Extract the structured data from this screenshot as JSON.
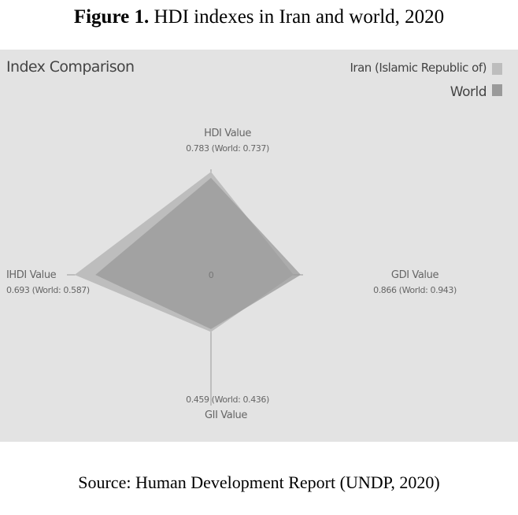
{
  "figure": {
    "title_bold": "Figure 1.",
    "title_rest": " HDI indexes in Iran and world, 2020",
    "source": "Source: Human Development Report (UNDP, 2020)"
  },
  "chart_data": {
    "type": "radar",
    "title": "Index Comparison",
    "center_label": "0",
    "axes": [
      "HDI Value",
      "GDI Value",
      "GII Value",
      "IHDI Value"
    ],
    "value_labels": [
      "0.783 (World: 0.737)",
      "0.866 (World: 0.943)",
      "0.459 (World: 0.436)",
      "0.693 (World: 0.587)"
    ],
    "series": [
      {
        "name": "Iran (Islamic Republic of)",
        "values": [
          0.783,
          0.866,
          0.459,
          0.693
        ],
        "color": "#bdbdbd"
      },
      {
        "name": "World",
        "values": [
          0.737,
          0.943,
          0.436,
          0.587
        ],
        "color": "#9a9a9a"
      }
    ],
    "legend": "top-right",
    "grid": false
  }
}
